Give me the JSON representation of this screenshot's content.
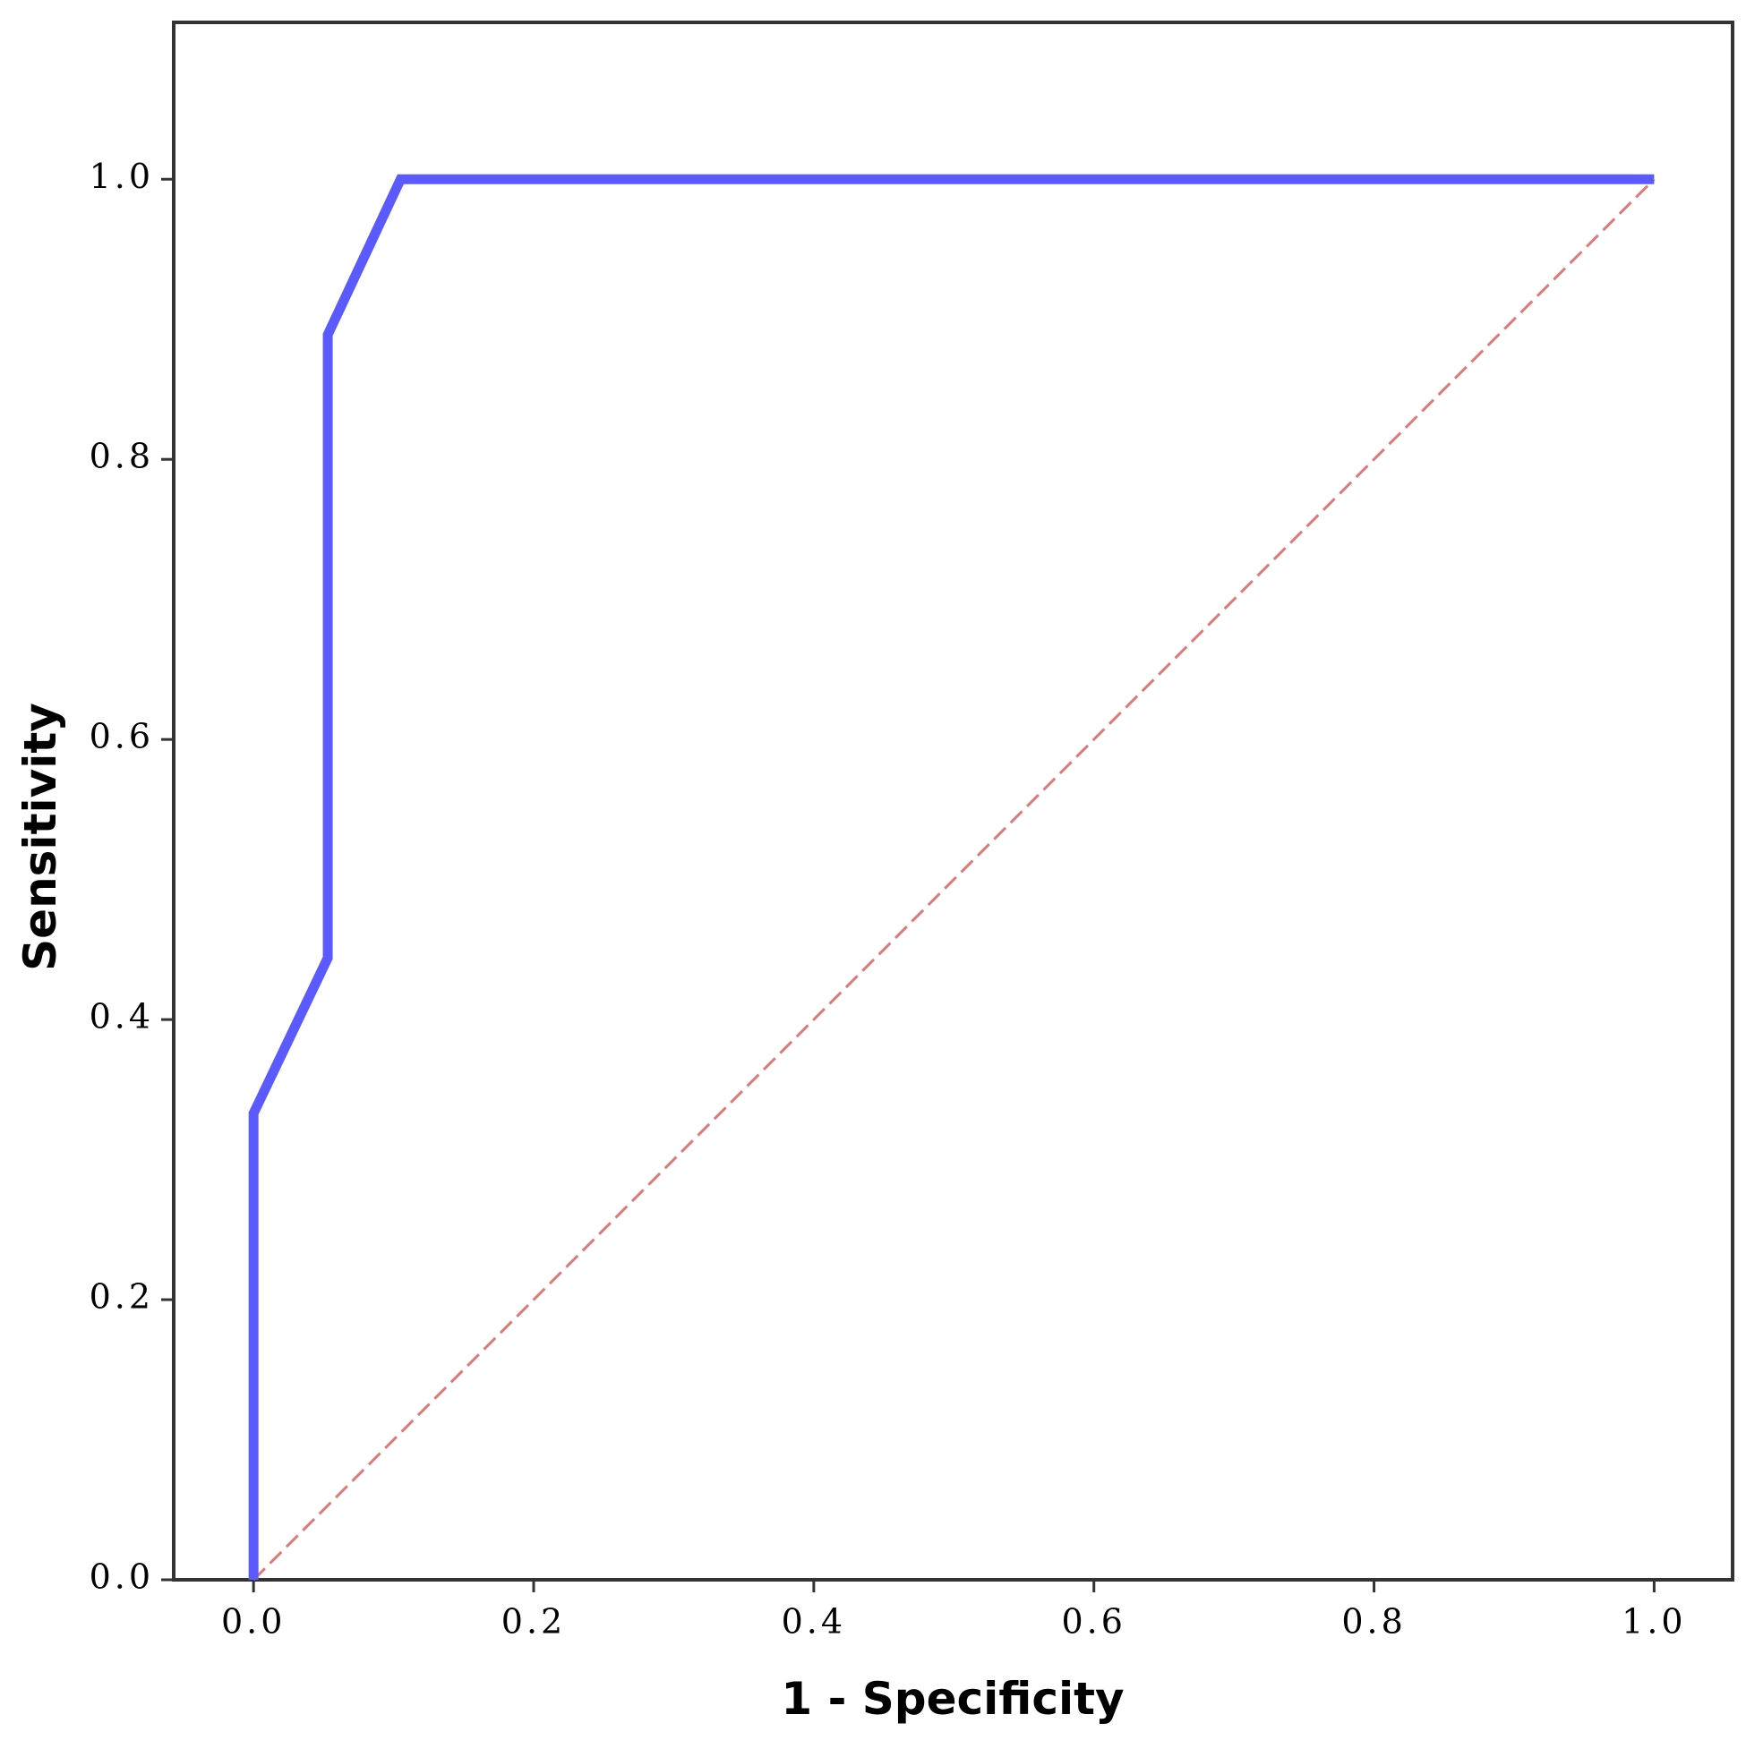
{
  "chart_data": {
    "type": "line",
    "x_label": "1 - Specificity",
    "y_label": "Sensitivity",
    "series": [
      {
        "color": "#5a5aff",
        "style": "solid",
        "x": [
          0,
          0,
          0.053,
          0.053,
          0.105,
          1
        ],
        "values": [
          0,
          0.333,
          0.444,
          0.889,
          1,
          1
        ]
      },
      {
        "color": "#e07878",
        "style": "dashed",
        "x": [
          0,
          1
        ],
        "values": [
          0,
          1
        ]
      }
    ],
    "xlim": [
      -0.057,
      1.056
    ],
    "ylim": [
      0,
      1.112
    ],
    "xticks": [
      {
        "value": 0,
        "label": "0.0"
      },
      0.2,
      0.4,
      0.6,
      0.8,
      {
        "value": 1,
        "label": "1.0"
      }
    ],
    "yticks": [
      {
        "value": 0,
        "label": "0.0"
      },
      0.2,
      0.4,
      0.6,
      0.8,
      {
        "value": 1,
        "label": "1.0"
      }
    ],
    "grid": false
  }
}
